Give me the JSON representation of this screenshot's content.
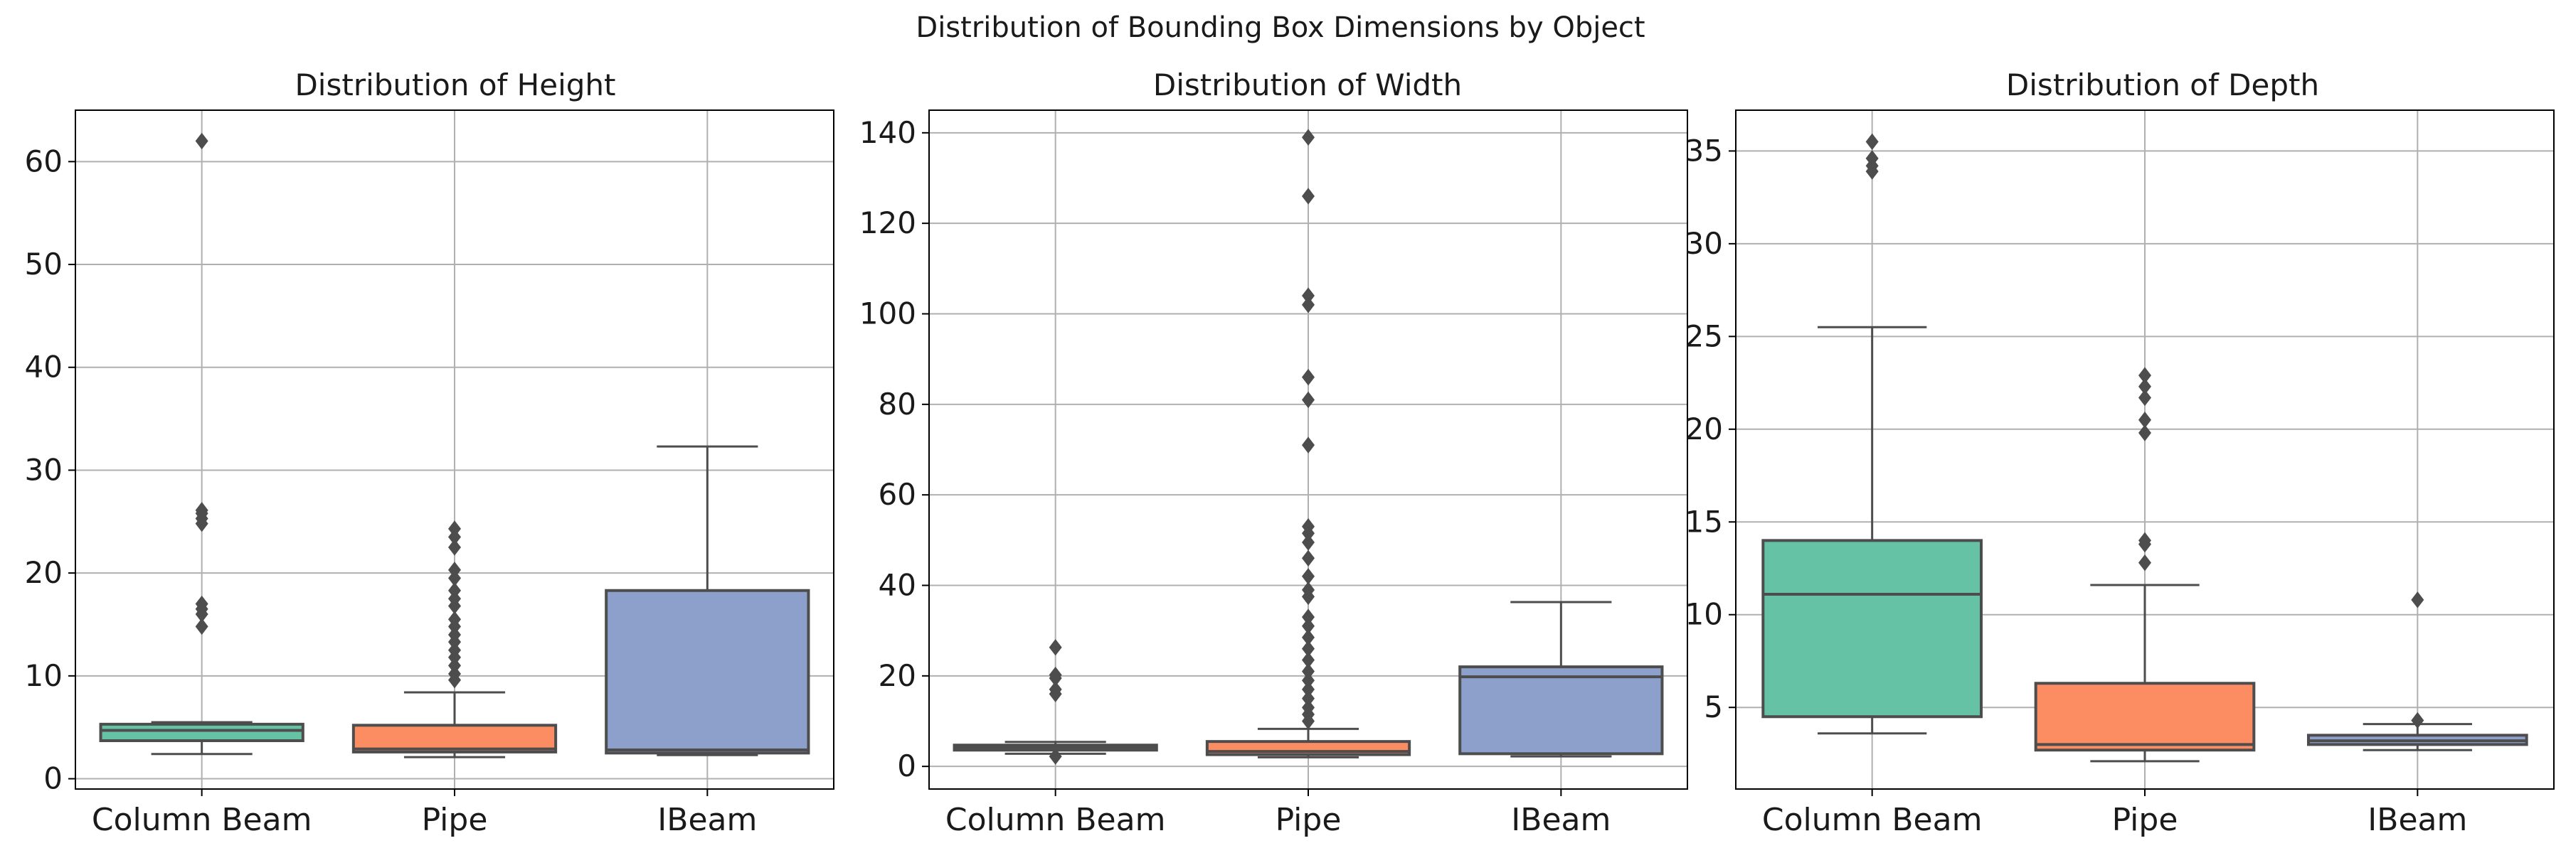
{
  "figure_title": "Distribution of Bounding Box Dimensions by Object",
  "colors": {
    "Column Beam": "#66c2a5",
    "Pipe": "#fc8d62",
    "IBeam": "#8da0cb",
    "grid": "#b0b0b0",
    "line": "#4d4d4d"
  },
  "chart_data": [
    {
      "type": "box",
      "title": "Distribution of Height",
      "xlabel": "",
      "ylabel": "",
      "categories": [
        "Column Beam",
        "Pipe",
        "IBeam"
      ],
      "ylim": [
        -1,
        65
      ],
      "yticks": [
        0,
        10,
        20,
        30,
        40,
        50,
        60
      ],
      "grid": true,
      "boxes": [
        {
          "name": "Column Beam",
          "whislo": 2.4,
          "q1": 3.7,
          "med": 4.7,
          "q3": 5.3,
          "whishi": 5.5,
          "fliers": [
            14.8,
            16.0,
            16.5,
            17.0,
            24.8,
            25.3,
            25.8,
            26.1,
            62.0
          ]
        },
        {
          "name": "Pipe",
          "whislo": 2.1,
          "q1": 2.6,
          "med": 2.9,
          "q3": 5.2,
          "whishi": 8.4,
          "fliers": [
            9.6,
            10.2,
            11.0,
            11.8,
            12.5,
            13.3,
            14.0,
            14.8,
            15.5,
            16.8,
            17.5,
            18.3,
            19.5,
            20.3,
            22.5,
            23.5,
            24.3
          ]
        },
        {
          "name": "IBeam",
          "whislo": 2.3,
          "q1": 2.5,
          "med": 2.8,
          "q3": 18.3,
          "whishi": 32.3,
          "fliers": []
        }
      ]
    },
    {
      "type": "box",
      "title": "Distribution of Width",
      "xlabel": "",
      "ylabel": "",
      "categories": [
        "Column Beam",
        "Pipe",
        "IBeam"
      ],
      "ylim": [
        -5,
        145
      ],
      "yticks": [
        0,
        20,
        40,
        60,
        80,
        100,
        120,
        140
      ],
      "grid": true,
      "boxes": [
        {
          "name": "Column Beam",
          "whislo": 2.8,
          "q1": 3.6,
          "med": 4.2,
          "q3": 4.7,
          "whishi": 5.4,
          "fliers": [
            2.2,
            16.0,
            17.0,
            19.5,
            20.2,
            26.3
          ]
        },
        {
          "name": "Pipe",
          "whislo": 2.0,
          "q1": 2.6,
          "med": 3.3,
          "q3": 5.5,
          "whishi": 8.3,
          "fliers": [
            10.0,
            11.5,
            13.0,
            15.0,
            17.0,
            19.0,
            21.0,
            23.5,
            26.0,
            28.5,
            31.0,
            33.0,
            37.5,
            39.0,
            42.0,
            46.0,
            49.5,
            51.5,
            53.0,
            71.0,
            81.0,
            86.0,
            102.0,
            104.0,
            126.0,
            139.0
          ]
        },
        {
          "name": "IBeam",
          "whislo": 2.2,
          "q1": 2.8,
          "med": 19.8,
          "q3": 22.0,
          "whishi": 36.3,
          "fliers": []
        }
      ]
    },
    {
      "type": "box",
      "title": "Distribution of Depth",
      "xlabel": "",
      "ylabel": "",
      "categories": [
        "Column Beam",
        "Pipe",
        "IBeam"
      ],
      "ylim": [
        0.6,
        37.2
      ],
      "yticks": [
        5,
        10,
        15,
        20,
        25,
        30,
        35
      ],
      "grid": true,
      "boxes": [
        {
          "name": "Column Beam",
          "whislo": 3.6,
          "q1": 4.5,
          "med": 11.1,
          "q3": 14.0,
          "whishi": 25.5,
          "fliers": [
            33.9,
            34.2,
            34.6,
            35.5
          ]
        },
        {
          "name": "Pipe",
          "whislo": 2.1,
          "q1": 2.7,
          "med": 3.0,
          "q3": 6.3,
          "whishi": 11.6,
          "fliers": [
            12.8,
            13.8,
            14.0,
            19.8,
            20.5,
            21.7,
            22.3,
            22.9
          ]
        },
        {
          "name": "IBeam",
          "whislo": 2.7,
          "q1": 3.0,
          "med": 3.2,
          "q3": 3.5,
          "whishi": 4.1,
          "fliers": [
            4.3,
            10.8
          ]
        }
      ]
    }
  ]
}
